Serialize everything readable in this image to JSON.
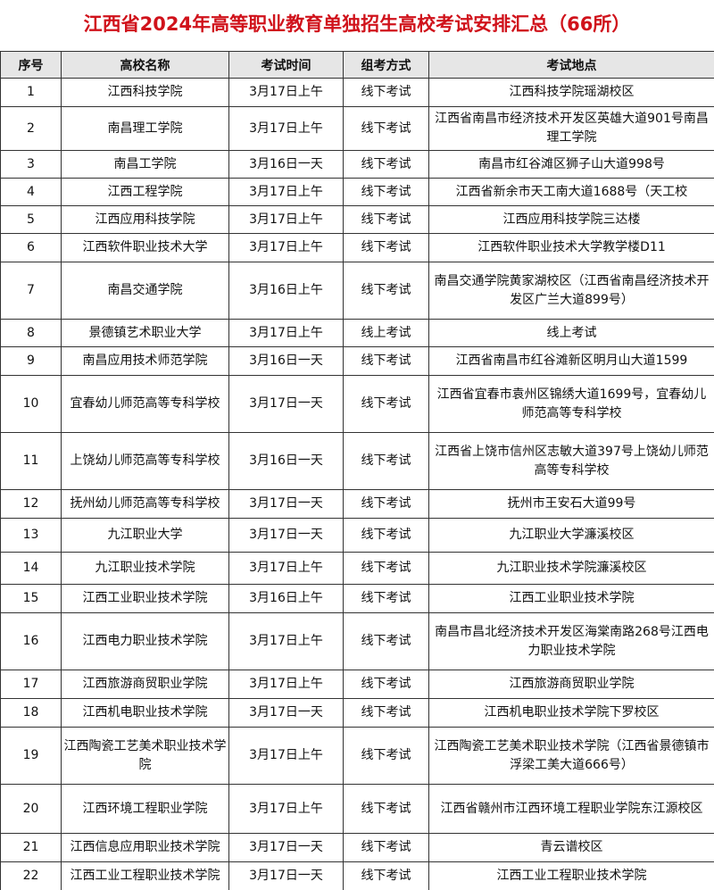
{
  "title": "江西省2024年高等职业教育单独招生高校考试安排汇总（66所）",
  "table": {
    "header": [
      "序号",
      "高校名称",
      "考试时间",
      "组考方式",
      "考试地点"
    ],
    "rows": [
      [
        "1",
        "江西科技学院",
        "3月17日上午",
        "线下考试",
        "江西科技学院瑶湖校区"
      ],
      [
        "2",
        "南昌理工学院",
        "3月17日上午",
        "线下考试",
        "江西省南昌市经济技术开发区英雄大道901号南昌理工学院"
      ],
      [
        "3",
        "南昌工学院",
        "3月16日一天",
        "线下考试",
        "南昌市红谷滩区狮子山大道998号"
      ],
      [
        "4",
        "江西工程学院",
        "3月17日上午",
        "线下考试",
        "江西省新余市天工南大道1688号（天工校"
      ],
      [
        "5",
        "江西应用科技学院",
        "3月17日上午",
        "线下考试",
        "江西应用科技学院三达楼"
      ],
      [
        "6",
        "江西软件职业技术大学",
        "3月17日上午",
        "线下考试",
        "江西软件职业技术大学教学楼D11"
      ],
      [
        "7",
        "南昌交通学院",
        "3月16日上午",
        "线下考试",
        "南昌交通学院黄家湖校区（江西省南昌经济技术开发区广兰大道899号）"
      ],
      [
        "8",
        "景德镇艺术职业大学",
        "3月17日上午",
        "线上考试",
        "线上考试"
      ],
      [
        "9",
        "南昌应用技术师范学院",
        "3月16日一天",
        "线下考试",
        "江西省南昌市红谷滩新区明月山大道1599"
      ],
      [
        "10",
        "宜春幼儿师范高等专科学校",
        "3月17日一天",
        "线下考试",
        "江西省宜春市袁州区锦绣大道1699号，宜春幼儿师范高等专科学校"
      ],
      [
        "11",
        "上饶幼儿师范高等专科学校",
        "3月16日一天",
        "线下考试",
        "江西省上饶市信州区志敏大道397号上饶幼儿师范高等专科学校"
      ],
      [
        "12",
        "抚州幼儿师范高等专科学校",
        "3月17日一天",
        "线下考试",
        "抚州市王安石大道99号"
      ],
      [
        "13",
        "九江职业大学",
        "3月17日一天",
        "线下考试",
        "九江职业大学濂溪校区"
      ],
      [
        "14",
        "九江职业技术学院",
        "3月17日上午",
        "线下考试",
        "九江职业技术学院濂溪校区"
      ],
      [
        "15",
        "江西工业职业技术学院",
        "3月16日上午",
        "线下考试",
        "江西工业职业技术学院"
      ],
      [
        "16",
        "江西电力职业技术学院",
        "3月17日上午",
        "线下考试",
        "南昌市昌北经济技术开发区海棠南路268号江西电力职业技术学院"
      ],
      [
        "17",
        "江西旅游商贸职业学院",
        "3月17日上午",
        "线下考试",
        "江西旅游商贸职业学院"
      ],
      [
        "18",
        "江西机电职业技术学院",
        "3月17日一天",
        "线下考试",
        "江西机电职业技术学院下罗校区"
      ],
      [
        "19",
        "江西陶瓷工艺美术职业技术学院",
        "3月17日上午",
        "线下考试",
        "江西陶瓷工艺美术职业技术学院（江西省景德镇市浮梁工美大道666号）"
      ],
      [
        "20",
        "江西环境工程职业学院",
        "3月17日上午",
        "线下考试",
        "江西省赣州市江西环境工程职业学院东江源校区"
      ],
      [
        "21",
        "江西信息应用职业技术学院",
        "3月17日一天",
        "线下考试",
        "青云谱校区"
      ],
      [
        "22",
        "江西工业工程职业技术学院",
        "3月17日一天",
        "线下考试",
        "江西工业工程职业技术学院"
      ]
    ]
  }
}
